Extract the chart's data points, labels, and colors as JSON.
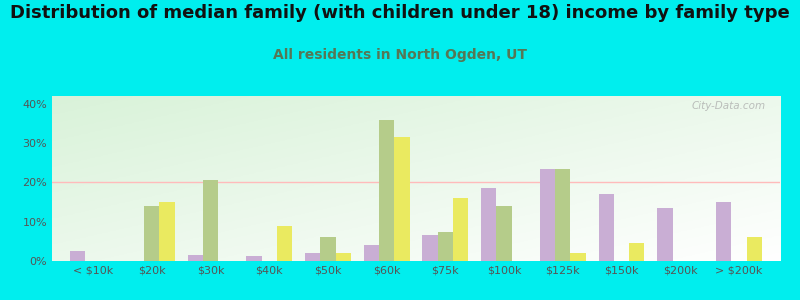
{
  "title": "Distribution of median family (with children under 18) income by family type",
  "subtitle": "All residents in North Ogden, UT",
  "categories": [
    "< $10k",
    "$20k",
    "$30k",
    "$40k",
    "$50k",
    "$60k",
    "$75k",
    "$100k",
    "$125k",
    "$150k",
    "$200k",
    "> $200k"
  ],
  "married_couple": [
    2.5,
    0,
    1.5,
    1.2,
    2.0,
    4.0,
    6.5,
    18.5,
    23.5,
    17.0,
    13.5,
    15.0
  ],
  "male_no_wife": [
    0,
    14.0,
    20.5,
    0,
    6.0,
    36.0,
    7.5,
    14.0,
    23.5,
    0,
    0,
    0
  ],
  "female_no_husband": [
    0,
    15.0,
    0,
    9.0,
    2.0,
    31.5,
    16.0,
    0,
    2.0,
    4.5,
    0,
    6.0
  ],
  "married_color": "#c9aed4",
  "male_color": "#b5cc8a",
  "female_color": "#eaea60",
  "bg_color_outer": "#00eeee",
  "ylim": [
    0,
    42
  ],
  "yticks": [
    0,
    10,
    20,
    30,
    40
  ],
  "ytick_labels": [
    "0%",
    "10%",
    "20%",
    "30%",
    "40%"
  ],
  "watermark": "City-Data.com",
  "bar_width": 0.26,
  "title_fontsize": 13,
  "subtitle_fontsize": 10,
  "subtitle_color": "#557755",
  "tick_fontsize": 8,
  "legend_fontsize": 9,
  "legend_text_color": "#333333"
}
